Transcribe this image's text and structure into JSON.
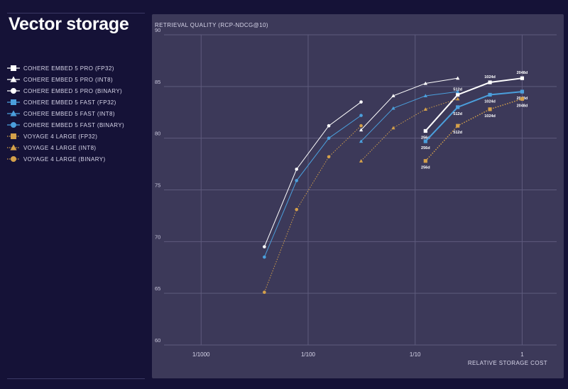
{
  "title": "Vector storage",
  "colors": {
    "background": "#151237",
    "panel": "#3c3959",
    "white": "#ffffff",
    "blue": "#4b9fdc",
    "gold": "#d4a04a",
    "grid": "#5e5b7d"
  },
  "legend": [
    {
      "label": "COHERE EMBED 5 PRO (FP32)",
      "color": "#ffffff",
      "marker": "square",
      "dash": false
    },
    {
      "label": "COHERE EMBED 5 PRO (INT8)",
      "color": "#ffffff",
      "marker": "triangle",
      "dash": false
    },
    {
      "label": "COHERE EMBED 5 PRO (BINARY)",
      "color": "#ffffff",
      "marker": "circle",
      "dash": false
    },
    {
      "label": "COHERE EMBED 5 FAST (FP32)",
      "color": "#4b9fdc",
      "marker": "square",
      "dash": false
    },
    {
      "label": "COHERE EMBED 5 FAST (INT8)",
      "color": "#4b9fdc",
      "marker": "triangle",
      "dash": false
    },
    {
      "label": "COHERE EMBED 5 FAST (BINARY)",
      "color": "#4b9fdc",
      "marker": "circle",
      "dash": false
    },
    {
      "label": "VOYAGE 4 LARGE (FP32)",
      "color": "#d4a04a",
      "marker": "square",
      "dash": true
    },
    {
      "label": "VOYAGE 4 LARGE (INT8)",
      "color": "#d4a04a",
      "marker": "triangle",
      "dash": true
    },
    {
      "label": "VOYAGE 4 LARGE (BINARY)",
      "color": "#d4a04a",
      "marker": "circle",
      "dash": true
    }
  ],
  "chart_data": {
    "type": "line",
    "title": "",
    "ylabel": "RETRIEVAL QUALITY (RCP-NDCG@10)",
    "xlabel": "RELATIVE STORAGE COST",
    "xscale": "log",
    "xlim": [
      0.00045,
      2.1
    ],
    "ylim": [
      60,
      90
    ],
    "x_ticks": [
      {
        "value": 0.001,
        "label": "1/1000"
      },
      {
        "value": 0.01,
        "label": "1/100"
      },
      {
        "value": 0.1,
        "label": "1/10"
      },
      {
        "value": 1,
        "label": "1"
      }
    ],
    "y_ticks": [
      60,
      65,
      70,
      75,
      80,
      85,
      90
    ],
    "grid": true,
    "series": [
      {
        "name": "COHERE EMBED 5 PRO (FP32)",
        "color": "#ffffff",
        "marker": "square",
        "dash": false,
        "width": 2,
        "x": [
          0.125,
          0.25,
          0.5,
          1.0
        ],
        "y": [
          80.7,
          84.2,
          85.4,
          85.8
        ],
        "labels": [
          "256d",
          "512d",
          "1024d",
          "2048d"
        ],
        "label_pos": [
          "below",
          "above",
          "above",
          "above"
        ]
      },
      {
        "name": "COHERE EMBED 5 PRO (INT8)",
        "color": "#ffffff",
        "marker": "triangle",
        "dash": false,
        "width": 1,
        "x": [
          0.03125,
          0.0625,
          0.125,
          0.25
        ],
        "y": [
          80.8,
          84.1,
          85.3,
          85.8
        ]
      },
      {
        "name": "COHERE EMBED 5 PRO (BINARY)",
        "color": "#ffffff",
        "marker": "circle",
        "dash": false,
        "width": 1,
        "x": [
          0.0039,
          0.0078,
          0.0156,
          0.03125
        ],
        "y": [
          69.5,
          77.0,
          81.2,
          83.5
        ]
      },
      {
        "name": "COHERE EMBED 5 FAST (FP32)",
        "color": "#4b9fdc",
        "marker": "square",
        "dash": false,
        "width": 2,
        "x": [
          0.125,
          0.25,
          0.5,
          1.0
        ],
        "y": [
          79.7,
          83.0,
          84.2,
          84.5
        ],
        "labels": [
          "256d",
          "512d",
          "1024d",
          "2048d"
        ],
        "label_pos": [
          "below",
          "below",
          "below",
          "below"
        ]
      },
      {
        "name": "COHERE EMBED 5 FAST (INT8)",
        "color": "#4b9fdc",
        "marker": "triangle",
        "dash": false,
        "width": 1,
        "x": [
          0.03125,
          0.0625,
          0.125,
          0.25
        ],
        "y": [
          79.7,
          82.9,
          84.1,
          84.5
        ]
      },
      {
        "name": "COHERE EMBED 5 FAST (BINARY)",
        "color": "#4b9fdc",
        "marker": "circle",
        "dash": false,
        "width": 1,
        "x": [
          0.0039,
          0.0078,
          0.0156,
          0.03125
        ],
        "y": [
          68.5,
          75.9,
          80.0,
          82.2
        ]
      },
      {
        "name": "VOYAGE 4 LARGE (FP32)",
        "color": "#d4a04a",
        "marker": "square",
        "dash": true,
        "width": 1.5,
        "x": [
          0.125,
          0.25,
          0.5,
          1.0
        ],
        "y": [
          77.8,
          81.2,
          82.8,
          83.8
        ],
        "labels": [
          "256d",
          "512d",
          "1024d",
          "2048d"
        ],
        "label_pos": [
          "below",
          "below",
          "below",
          "below"
        ]
      },
      {
        "name": "VOYAGE 4 LARGE (INT8)",
        "color": "#d4a04a",
        "marker": "triangle",
        "dash": true,
        "width": 1,
        "x": [
          0.03125,
          0.0625,
          0.125,
          0.25
        ],
        "y": [
          77.8,
          81.0,
          82.8,
          83.8
        ]
      },
      {
        "name": "VOYAGE 4 LARGE (BINARY)",
        "color": "#d4a04a",
        "marker": "circle",
        "dash": true,
        "width": 1,
        "x": [
          0.0039,
          0.0078,
          0.0156,
          0.03125
        ],
        "y": [
          65.1,
          73.1,
          78.2,
          81.2
        ]
      }
    ]
  }
}
